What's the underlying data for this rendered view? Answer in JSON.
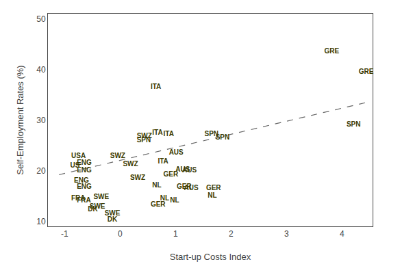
{
  "chart_data": {
    "type": "scatter",
    "xlabel": "Start-up Costs Index",
    "ylabel": "Self-Employment Rates (%)",
    "xlim": [
      -1.3,
      4.55
    ],
    "ylim": [
      9,
      51
    ],
    "xticks": [
      -1,
      0,
      1,
      2,
      3,
      4
    ],
    "yticks": [
      10,
      20,
      30,
      40,
      50
    ],
    "grid": false,
    "series": [
      {
        "type": "line",
        "line_style": "dashed",
        "color": "#666666",
        "x": [
          -1.1,
          4.45
        ],
        "values": [
          19.2,
          33.5
        ]
      },
      {
        "type": "text",
        "color": "#3a3a00",
        "labels": [
          "USA",
          "US",
          "ENG",
          "ENG",
          "ENG",
          "ENG",
          "FRA",
          "FRA",
          "SWE",
          "SWE",
          "SWE",
          "DK",
          "DK",
          "SWZ",
          "SWZ",
          "SWZ",
          "SWZ",
          "SPN",
          "ITA",
          "ITA",
          "ITA",
          "ITA",
          "GER",
          "GER",
          "GER",
          "NL",
          "NL",
          "NL",
          "AUS",
          "AUS",
          "AUS",
          "AUS",
          "SPN",
          "SPN",
          "GER",
          "NL",
          "GRE",
          "SPN",
          "GRE"
        ],
        "x": [
          -0.88,
          -0.9,
          -0.78,
          -0.78,
          -0.83,
          -0.78,
          -0.88,
          -0.78,
          -0.48,
          -0.55,
          -0.28,
          -0.58,
          -0.23,
          -0.18,
          0.05,
          0.18,
          0.3,
          0.3,
          0.58,
          0.78,
          0.68,
          0.55,
          0.55,
          0.78,
          1.02,
          0.58,
          0.72,
          0.9,
          0.88,
          1.0,
          1.12,
          1.15,
          1.52,
          1.72,
          1.55,
          1.58,
          3.68,
          4.08,
          4.3
        ],
        "values": [
          22.8,
          21.0,
          21.5,
          20.0,
          18.0,
          16.8,
          14.5,
          14.0,
          14.8,
          12.8,
          11.5,
          12.3,
          10.3,
          22.8,
          21.2,
          18.5,
          26.8,
          26.0,
          27.5,
          27.2,
          21.8,
          36.5,
          13.3,
          19.2,
          16.8,
          17.0,
          14.5,
          14.0,
          23.5,
          20.2,
          20.0,
          16.5,
          27.2,
          26.5,
          16.5,
          15.0,
          43.5,
          29.0,
          39.5
        ]
      }
    ]
  }
}
